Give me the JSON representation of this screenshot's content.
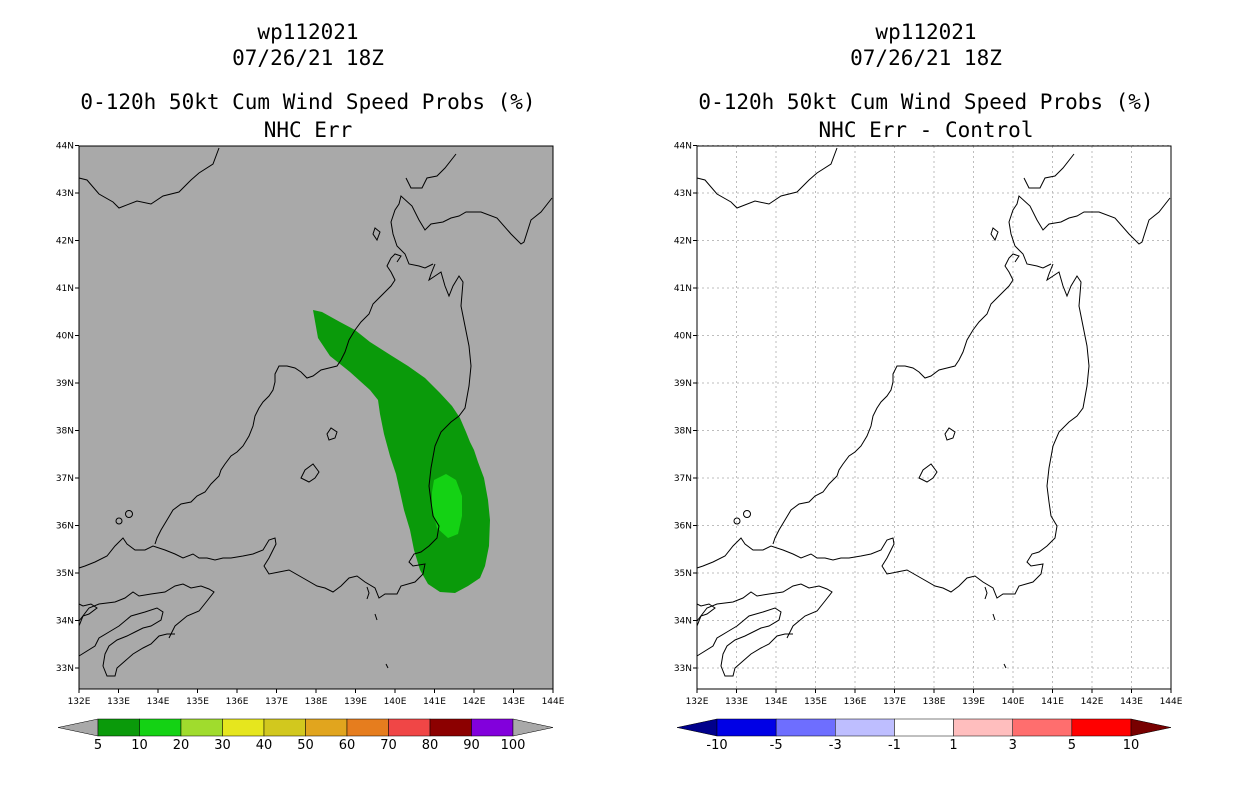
{
  "left_panel": {
    "title_line1": "wp112021",
    "title_line2": "07/26/21 18Z",
    "title_line3": "0-120h 50kt Cum Wind Speed Probs (%)",
    "title_line4": "NHC Err",
    "background_color": "#a9a9a9"
  },
  "right_panel": {
    "title_line1": "wp112021",
    "title_line2": "07/26/21 18Z",
    "title_line3": "0-120h 50kt Cum Wind Speed Probs (%)",
    "title_line4": "NHC Err - Control",
    "background_color": "#ffffff",
    "gridlines": true
  },
  "axes": {
    "lon_ticks": [
      "132E",
      "133E",
      "134E",
      "135E",
      "136E",
      "137E",
      "138E",
      "139E",
      "140E",
      "141E",
      "142E",
      "143E",
      "144E"
    ],
    "lat_ticks": [
      "33N",
      "34N",
      "35N",
      "36N",
      "37N",
      "38N",
      "39N",
      "40N",
      "41N",
      "42N",
      "43N",
      "44N"
    ]
  },
  "left_colorbar": {
    "labels": [
      "5",
      "10",
      "20",
      "30",
      "40",
      "50",
      "60",
      "70",
      "80",
      "90",
      "100"
    ],
    "colors": [
      "#0a9a0a",
      "#14d214",
      "#a0dc2d",
      "#e6e61e",
      "#d2c81e",
      "#e1a51e",
      "#e67d1e",
      "#f04646",
      "#8c0000",
      "#8200dc"
    ],
    "under_color": "#a9a9a9",
    "over_color": "#a9a9a9"
  },
  "right_colorbar": {
    "labels": [
      "-10",
      "-5",
      "-3",
      "-1",
      "1",
      "3",
      "5",
      "10"
    ],
    "colors": [
      "#0000e6",
      "#6e6eff",
      "#bebeff",
      "#ffffff",
      "#ffbebe",
      "#ff6e6e",
      "#ff0000"
    ],
    "under_color": "#00008c",
    "over_color": "#780000"
  },
  "probability_contours": {
    "level_5_color": "#0a9a0a",
    "level_10_color": "#14d214"
  }
}
